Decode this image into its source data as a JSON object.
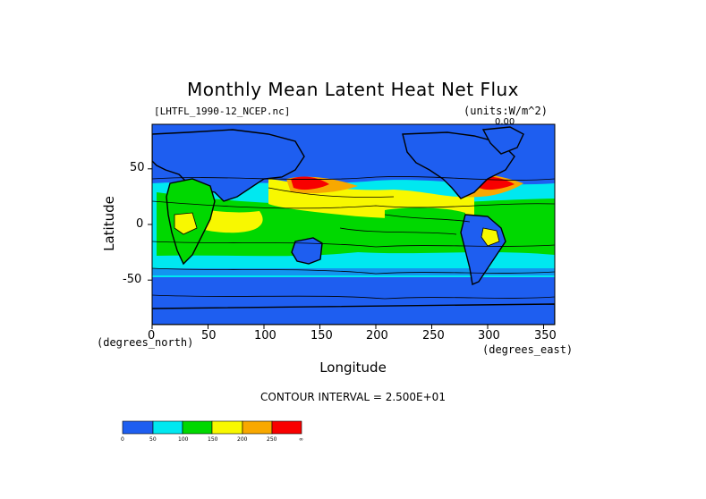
{
  "plot": {
    "title": "Monthly Mean Latent Heat Net Flux",
    "file_label": "[LHTFL_1990-12_NCEP.nc]",
    "units_label": "(units:W/m^2)",
    "contour_interval": "CONTOUR INTERVAL = 2.500E+01",
    "top_value": "0.00"
  },
  "axes": {
    "xlabel": "Longitude",
    "ylabel": "Latitude",
    "x_units": "(degrees_east)",
    "y_units": "(degrees_north)",
    "xlim": [
      0,
      360
    ],
    "ylim": [
      -90,
      90
    ],
    "x_ticks": [
      "0",
      "50",
      "100",
      "150",
      "200",
      "250",
      "300",
      "350"
    ],
    "y_ticks": [
      "50",
      "0",
      "-50"
    ]
  },
  "colorbar": {
    "colors": [
      "#1e5ef0",
      "#00e8f0",
      "#00d800",
      "#f8f800",
      "#f8a800",
      "#f80000"
    ],
    "labels": [
      "0",
      "50",
      "100",
      "150",
      "200",
      "250",
      "∞"
    ]
  }
}
